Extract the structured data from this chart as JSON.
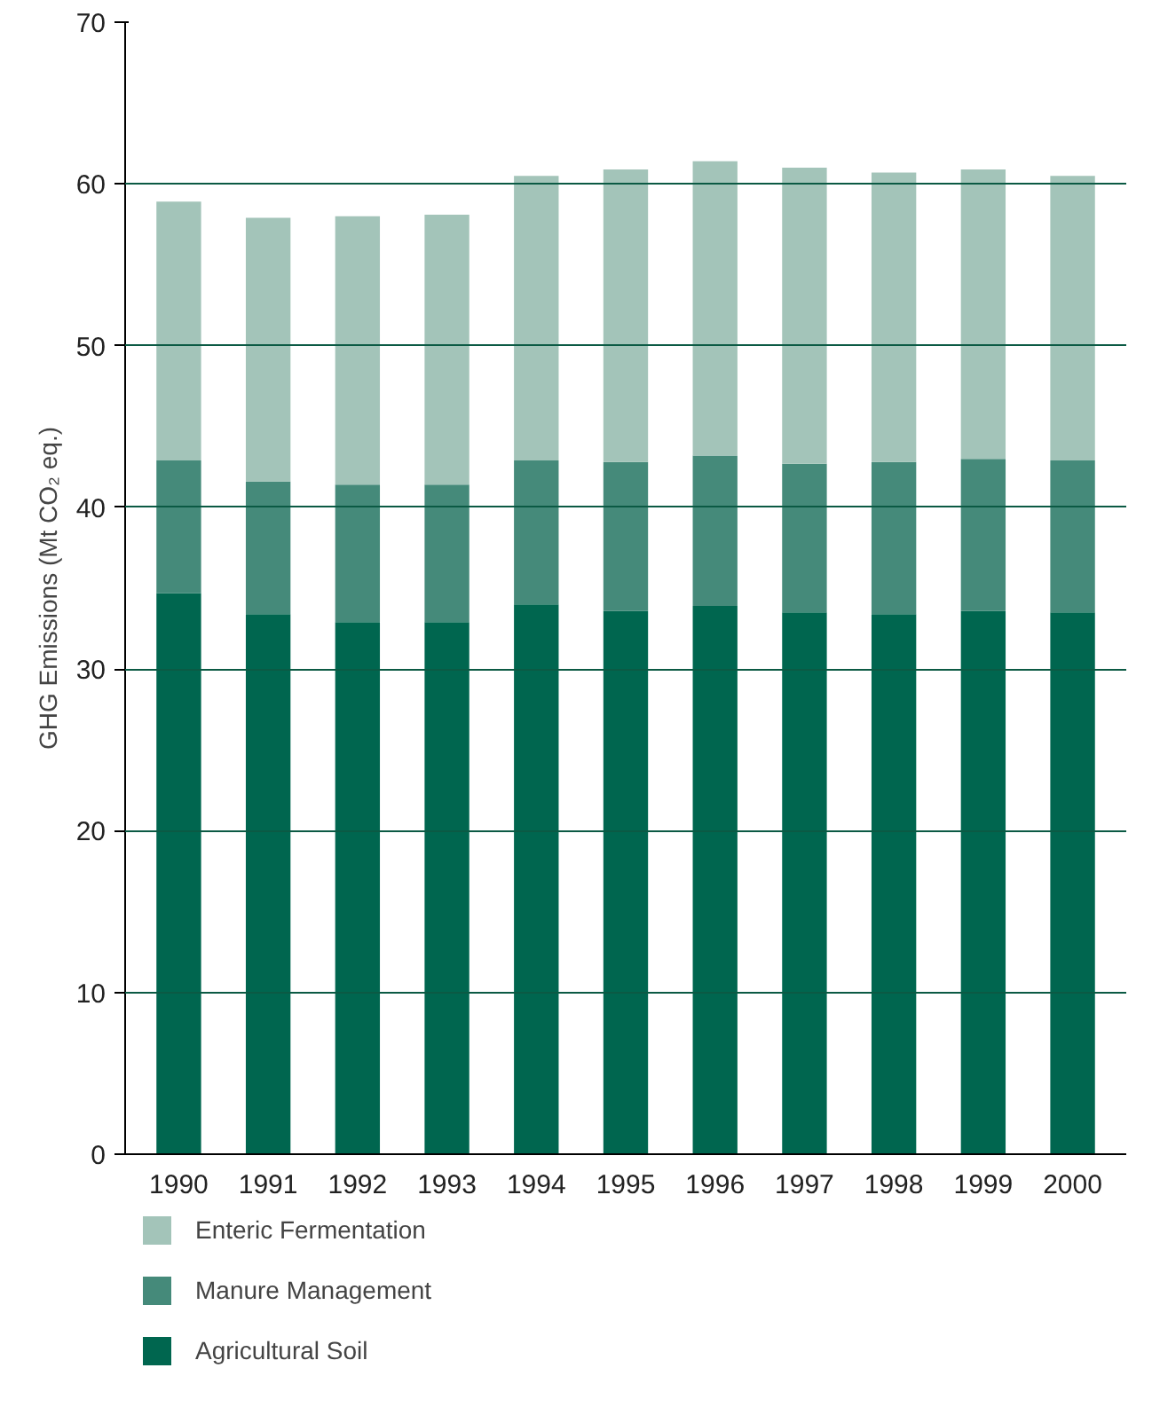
{
  "chart_data": {
    "type": "bar",
    "stacked": true,
    "ylabel": "GHG Emissions (Mt CO₂ eq.)",
    "categories": [
      "1990",
      "1991",
      "1992",
      "1993",
      "1994",
      "1995",
      "1996",
      "1997",
      "1998",
      "1999",
      "2000"
    ],
    "series": [
      {
        "name": "Agricultural Soil",
        "color": "#00664f",
        "values": [
          34.7,
          33.4,
          32.9,
          32.9,
          34.0,
          33.6,
          33.9,
          33.5,
          33.4,
          33.6,
          33.5
        ]
      },
      {
        "name": "Manure Management",
        "color": "#458a7a",
        "values": [
          8.2,
          8.2,
          8.5,
          8.5,
          8.9,
          9.2,
          9.3,
          9.2,
          9.4,
          9.4,
          9.4
        ]
      },
      {
        "name": "Enteric Fermentation",
        "color": "#a3c4b9",
        "values": [
          16.0,
          16.3,
          16.6,
          16.7,
          17.6,
          18.1,
          18.2,
          18.3,
          17.9,
          17.9,
          17.6
        ]
      }
    ],
    "ylim": [
      0,
      70
    ],
    "yticks": [
      0,
      10,
      20,
      30,
      40,
      50,
      60,
      70
    ],
    "grid": "y",
    "legend": "bottom"
  }
}
